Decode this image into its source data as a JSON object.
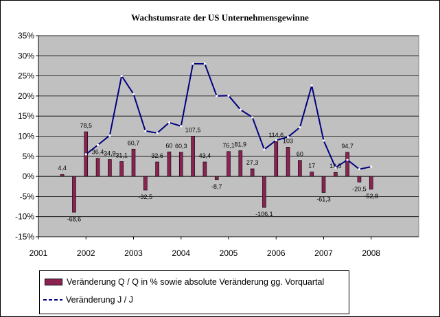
{
  "chart_data": {
    "type": "bar+line",
    "title": "Wachstumsrate der US Unternehmensgewinne",
    "ylim": [
      -15,
      35
    ],
    "yticks": [
      "-15%",
      "-10%",
      "-5%",
      "0%",
      "5%",
      "10%",
      "15%",
      "20%",
      "25%",
      "30%",
      "35%"
    ],
    "xlim": [
      2001,
      2009
    ],
    "xticks": [
      "2001",
      "2002",
      "2003",
      "2004",
      "2005",
      "2006",
      "2007",
      "2008"
    ],
    "grid": true,
    "legend_position": "bottom",
    "colors": {
      "bar": "#8b2252",
      "line": "#000080",
      "plot_bg": "#c0c0c0"
    },
    "series": [
      {
        "name": "Veränderung Q / Q in % sowie absolute Veränderung gg. Vorquartal",
        "type": "bar",
        "x": [
          2001.5,
          2001.75,
          2002.0,
          2002.25,
          2002.5,
          2002.75,
          2003.0,
          2003.25,
          2003.5,
          2003.75,
          2004.0,
          2004.25,
          2004.5,
          2004.75,
          2005.0,
          2005.25,
          2005.5,
          2005.75,
          2006.0,
          2006.25,
          2006.5,
          2006.75,
          2007.0,
          2007.25,
          2007.5,
          2007.75,
          2008.0
        ],
        "values": [
          0.5,
          -8.9,
          11.1,
          4.5,
          4.2,
          3.7,
          6.8,
          -3.4,
          3.6,
          6.1,
          6.0,
          10.0,
          3.6,
          -0.8,
          6.2,
          6.4,
          1.9,
          -7.7,
          8.7,
          7.3,
          4.0,
          1.1,
          -4.0,
          1.0,
          6.0,
          -1.4,
          -3.2
        ],
        "labels": [
          "4,4",
          "-68,6",
          "78,5",
          "36,4",
          "34,9",
          "31,1",
          "60,7",
          "-32,5",
          "32,6",
          "60",
          "60,3",
          "107,5",
          "43,4",
          "-8,7",
          "76,1",
          "81,9",
          "27,3",
          "-106,1",
          "114,6",
          "103",
          "60",
          "17",
          "-61,3",
          "13,5",
          "94,7",
          "-20,5",
          "-52,8"
        ]
      },
      {
        "name": "Veränderung J / J",
        "type": "line",
        "x": [
          2002.0,
          2002.25,
          2002.5,
          2002.75,
          2003.0,
          2003.25,
          2003.5,
          2003.75,
          2004.0,
          2004.25,
          2004.5,
          2004.75,
          2005.0,
          2005.25,
          2005.5,
          2005.75,
          2006.0,
          2006.25,
          2006.5,
          2006.75,
          2007.0,
          2007.25,
          2007.5,
          2007.75,
          2008.0
        ],
        "values": [
          5.5,
          7.8,
          10.2,
          25.0,
          20.5,
          11.3,
          10.8,
          13.4,
          12.5,
          28.0,
          28.0,
          20.0,
          20.1,
          16.6,
          14.7,
          6.7,
          9.0,
          9.8,
          12.2,
          22.6,
          8.9,
          2.2,
          4.1,
          1.8,
          2.4
        ]
      }
    ]
  }
}
